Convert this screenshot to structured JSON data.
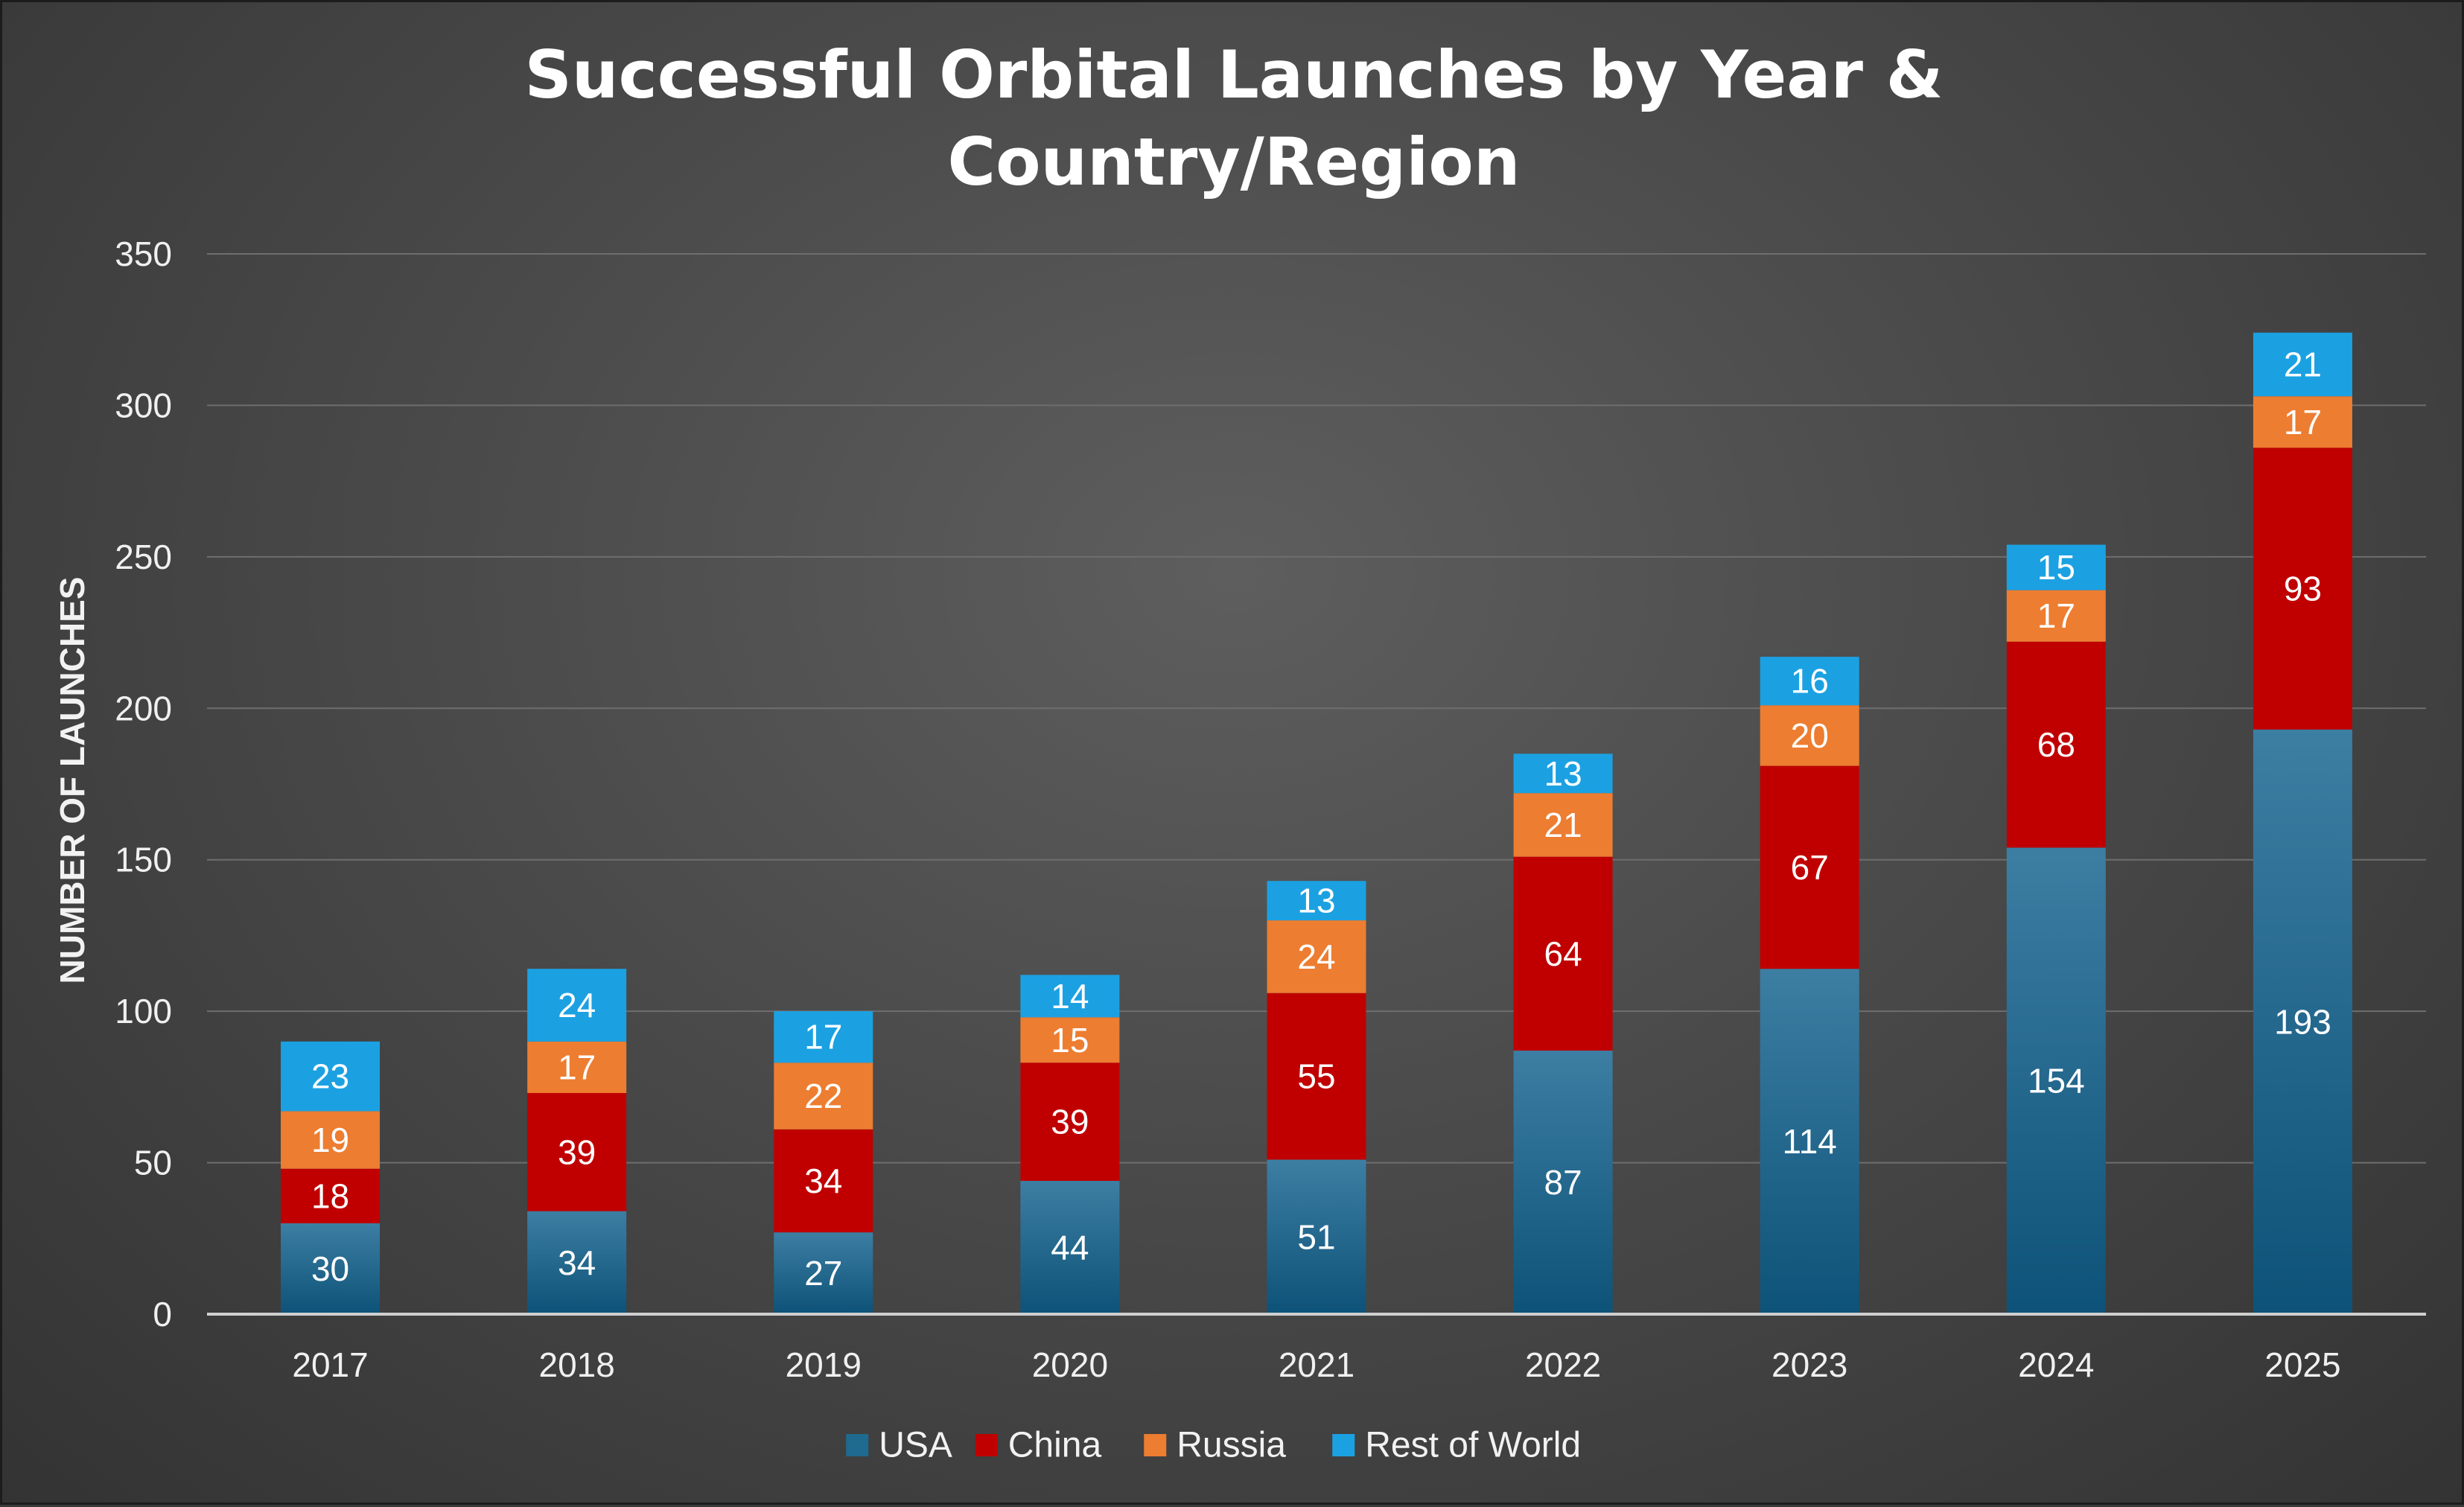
{
  "chart_data": {
    "type": "bar",
    "stacked": true,
    "title": "Successful Orbital Launches by Year & Country/Region",
    "title_lines": [
      "Successful Orbital Launches by Year &",
      "Country/Region"
    ],
    "xlabel": "",
    "ylabel": "NUMBER OF LAUNCHES",
    "ylim": [
      0,
      350
    ],
    "yticks": [
      "0",
      "50",
      "100",
      "150",
      "200",
      "250",
      "300",
      "350"
    ],
    "grid": true,
    "legend_position": "bottom",
    "categories": [
      "2017",
      "2018",
      "2019",
      "2020",
      "2021",
      "2022",
      "2023",
      "2024",
      "2025"
    ],
    "series": [
      {
        "name": "USA",
        "color": "#1f6a8f",
        "values": [
          30,
          34,
          27,
          44,
          51,
          87,
          114,
          154,
          193
        ]
      },
      {
        "name": "China",
        "color": "#c00000",
        "values": [
          18,
          39,
          34,
          39,
          55,
          64,
          67,
          68,
          93
        ]
      },
      {
        "name": "Russia",
        "color": "#ed7d31",
        "values": [
          19,
          17,
          22,
          15,
          24,
          21,
          20,
          17,
          17
        ]
      },
      {
        "name": "Rest of World",
        "color": "#1ba1e2",
        "values": [
          23,
          24,
          17,
          14,
          13,
          13,
          16,
          15,
          21
        ]
      }
    ]
  }
}
